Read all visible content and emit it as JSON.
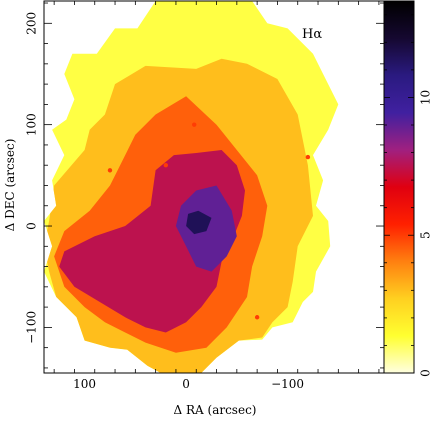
{
  "chart_data": {
    "type": "heatmap",
    "title": "",
    "annotation": "Hα",
    "xlabel": "Δ RA (arcsec)",
    "ylabel": "Δ DEC (arcsec)",
    "xlim": [
      140,
      -195
    ],
    "ylim": [
      -145,
      222
    ],
    "x_ticks": [
      100,
      0,
      -100
    ],
    "x_tick_labels": [
      "100",
      "0",
      "−100"
    ],
    "y_ticks": [
      200,
      100,
      0,
      -100
    ],
    "y_tick_labels": [
      "200",
      "100",
      "0",
      "−100"
    ],
    "colorbar": {
      "range": [
        0,
        13.5
      ],
      "ticks": [
        0,
        5,
        10
      ],
      "tick_labels": [
        "0",
        "5",
        "10"
      ],
      "colors": [
        "#ffffe0",
        "#ffff30",
        "#ffd020",
        "#ff8010",
        "#ff2000",
        "#e00010",
        "#a02080",
        "#4020a0",
        "#2a1a80",
        "#150830",
        "#000000"
      ]
    },
    "footprint": {
      "outline": [
        [
          -55,
          222
        ],
        [
          30,
          222
        ],
        [
          48,
          195
        ],
        [
          70,
          195
        ],
        [
          88,
          170
        ],
        [
          112,
          170
        ],
        [
          120,
          150
        ],
        [
          110,
          125
        ],
        [
          118,
          105
        ],
        [
          132,
          95
        ],
        [
          120,
          70
        ],
        [
          132,
          45
        ],
        [
          128,
          20
        ],
        [
          140,
          5
        ],
        [
          132,
          -20
        ],
        [
          140,
          -45
        ],
        [
          128,
          -70
        ],
        [
          108,
          -90
        ],
        [
          100,
          -113
        ],
        [
          75,
          -120
        ],
        [
          58,
          -122
        ],
        [
          38,
          -138
        ],
        [
          25,
          -145
        ],
        [
          -15,
          -145
        ],
        [
          -30,
          -130
        ],
        [
          -52,
          -113
        ],
        [
          -75,
          -112
        ],
        [
          -85,
          -100
        ],
        [
          -105,
          -95
        ],
        [
          -115,
          -75
        ],
        [
          -125,
          -65
        ],
        [
          -128,
          -45
        ],
        [
          -142,
          -20
        ],
        [
          -140,
          5
        ],
        [
          -128,
          20
        ],
        [
          -135,
          45
        ],
        [
          -125,
          70
        ],
        [
          -140,
          95
        ],
        [
          -150,
          120
        ],
        [
          -135,
          150
        ],
        [
          -125,
          170
        ],
        [
          -100,
          195
        ],
        [
          -80,
          200
        ],
        [
          -65,
          222
        ]
      ]
    },
    "regions": [
      {
        "level": 3.0,
        "outline": [
          [
            -10,
            155
          ],
          [
            40,
            158
          ],
          [
            70,
            140
          ],
          [
            80,
            110
          ],
          [
            95,
            95
          ],
          [
            100,
            75
          ],
          [
            130,
            40
          ],
          [
            135,
            5
          ],
          [
            140,
            -20
          ],
          [
            135,
            -45
          ],
          [
            128,
            -70
          ],
          [
            108,
            -90
          ],
          [
            100,
            -113
          ],
          [
            75,
            -120
          ],
          [
            58,
            -122
          ],
          [
            38,
            -138
          ],
          [
            25,
            -145
          ],
          [
            -15,
            -145
          ],
          [
            -30,
            -130
          ],
          [
            -52,
            -113
          ],
          [
            -75,
            -110
          ],
          [
            -85,
            -95
          ],
          [
            -100,
            -80
          ],
          [
            -105,
            -55
          ],
          [
            -110,
            -20
          ],
          [
            -125,
            10
          ],
          [
            -120,
            60
          ],
          [
            -110,
            110
          ],
          [
            -90,
            145
          ],
          [
            -60,
            160
          ],
          [
            -35,
            165
          ]
        ]
      },
      {
        "level": 4.5,
        "outline": [
          [
            0,
            128
          ],
          [
            30,
            110
          ],
          [
            50,
            90
          ],
          [
            60,
            70
          ],
          [
            75,
            40
          ],
          [
            95,
            15
          ],
          [
            120,
            -5
          ],
          [
            130,
            -30
          ],
          [
            120,
            -60
          ],
          [
            100,
            -80
          ],
          [
            80,
            -95
          ],
          [
            60,
            -105
          ],
          [
            40,
            -115
          ],
          [
            10,
            -125
          ],
          [
            -20,
            -120
          ],
          [
            -40,
            -100
          ],
          [
            -60,
            -70
          ],
          [
            -65,
            -40
          ],
          [
            -75,
            -10
          ],
          [
            -80,
            20
          ],
          [
            -70,
            50
          ],
          [
            -50,
            75
          ],
          [
            -30,
            100
          ]
        ]
      },
      {
        "level": 7.5,
        "outline": [
          [
            -35,
            75
          ],
          [
            -10,
            72
          ],
          [
            12,
            70
          ],
          [
            30,
            55
          ],
          [
            35,
            20
          ],
          [
            60,
            0
          ],
          [
            90,
            -10
          ],
          [
            120,
            -25
          ],
          [
            125,
            -40
          ],
          [
            110,
            -60
          ],
          [
            85,
            -75
          ],
          [
            60,
            -90
          ],
          [
            40,
            -100
          ],
          [
            20,
            -105
          ],
          [
            0,
            -95
          ],
          [
            -15,
            -80
          ],
          [
            -30,
            -60
          ],
          [
            -35,
            -35
          ],
          [
            -45,
            -15
          ],
          [
            -55,
            10
          ],
          [
            -58,
            35
          ],
          [
            -50,
            60
          ]
        ]
      },
      {
        "level": 9.0,
        "outline": [
          [
            -30,
            40
          ],
          [
            -10,
            35
          ],
          [
            5,
            20
          ],
          [
            10,
            0
          ],
          [
            0,
            -20
          ],
          [
            -10,
            -40
          ],
          [
            -25,
            -45
          ],
          [
            -40,
            -30
          ],
          [
            -50,
            -10
          ],
          [
            -45,
            15
          ]
        ]
      },
      {
        "level": 11.5,
        "outline": [
          [
            -12,
            15
          ],
          [
            -2,
            12
          ],
          [
            0,
            0
          ],
          [
            -8,
            -8
          ],
          [
            -20,
            -5
          ],
          [
            -25,
            8
          ]
        ]
      }
    ],
    "point_sources": [
      {
        "x": 75,
        "y": 55,
        "level": 5
      },
      {
        "x": -120,
        "y": 68,
        "level": 5
      },
      {
        "x": -8,
        "y": 100,
        "level": 5
      },
      {
        "x": -70,
        "y": -90,
        "level": 5
      },
      {
        "x": 20,
        "y": 60,
        "level": 5
      }
    ]
  }
}
